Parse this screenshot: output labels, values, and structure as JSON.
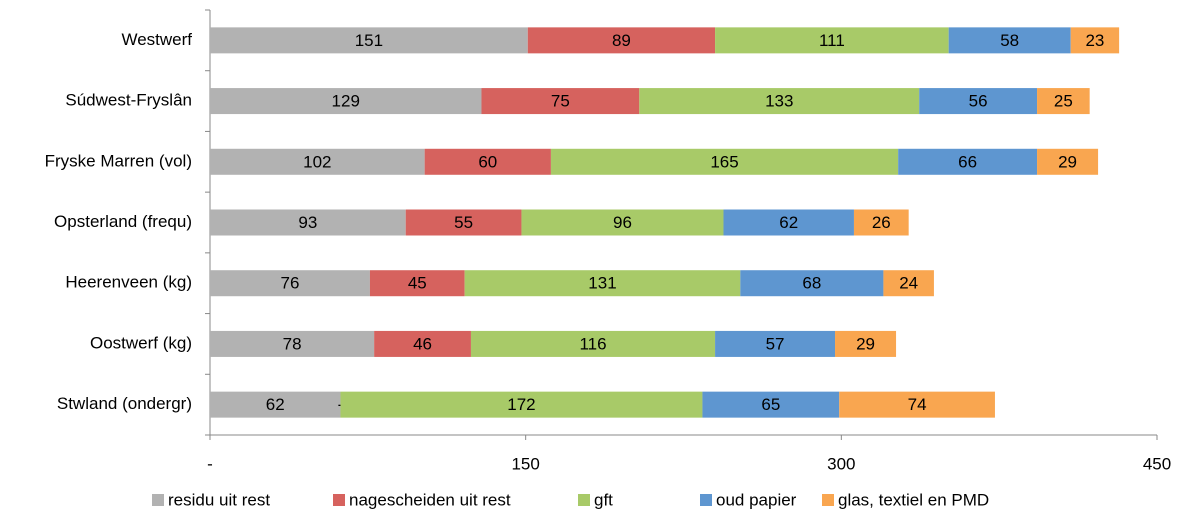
{
  "chart_data": {
    "type": "stacked_barh",
    "categories": [
      "Westwerf",
      "Súdwest-Fryslân",
      "Fryske Marren (vol)",
      "Opsterland (frequ)",
      "Heerenveen (kg)",
      "Oostwerf (kg)",
      "Stwland (ondergr)"
    ],
    "series": [
      {
        "name": "residu uit rest",
        "color": "#b2b2b2",
        "values": [
          151,
          129,
          102,
          93,
          76,
          78,
          62
        ]
      },
      {
        "name": "nagescheiden uit rest",
        "color": "#d6625e",
        "values": [
          89,
          75,
          60,
          55,
          45,
          46,
          0
        ],
        "value_labels": [
          "89",
          "75",
          "60",
          "55",
          "45",
          "46",
          "-"
        ]
      },
      {
        "name": "gft",
        "color": "#a8ca68",
        "values": [
          111,
          133,
          165,
          96,
          131,
          116,
          172
        ]
      },
      {
        "name": "oud papier",
        "color": "#5e96d0",
        "values": [
          58,
          56,
          66,
          62,
          68,
          57,
          65
        ]
      },
      {
        "name": "glas, textiel en PMD",
        "color": "#f9a650",
        "values": [
          23,
          25,
          29,
          26,
          24,
          29,
          74
        ]
      }
    ],
    "xlim": [
      0,
      450
    ],
    "xticks": [
      {
        "value": 0,
        "label": "-"
      },
      150,
      300,
      450
    ],
    "legend": "bottom"
  }
}
